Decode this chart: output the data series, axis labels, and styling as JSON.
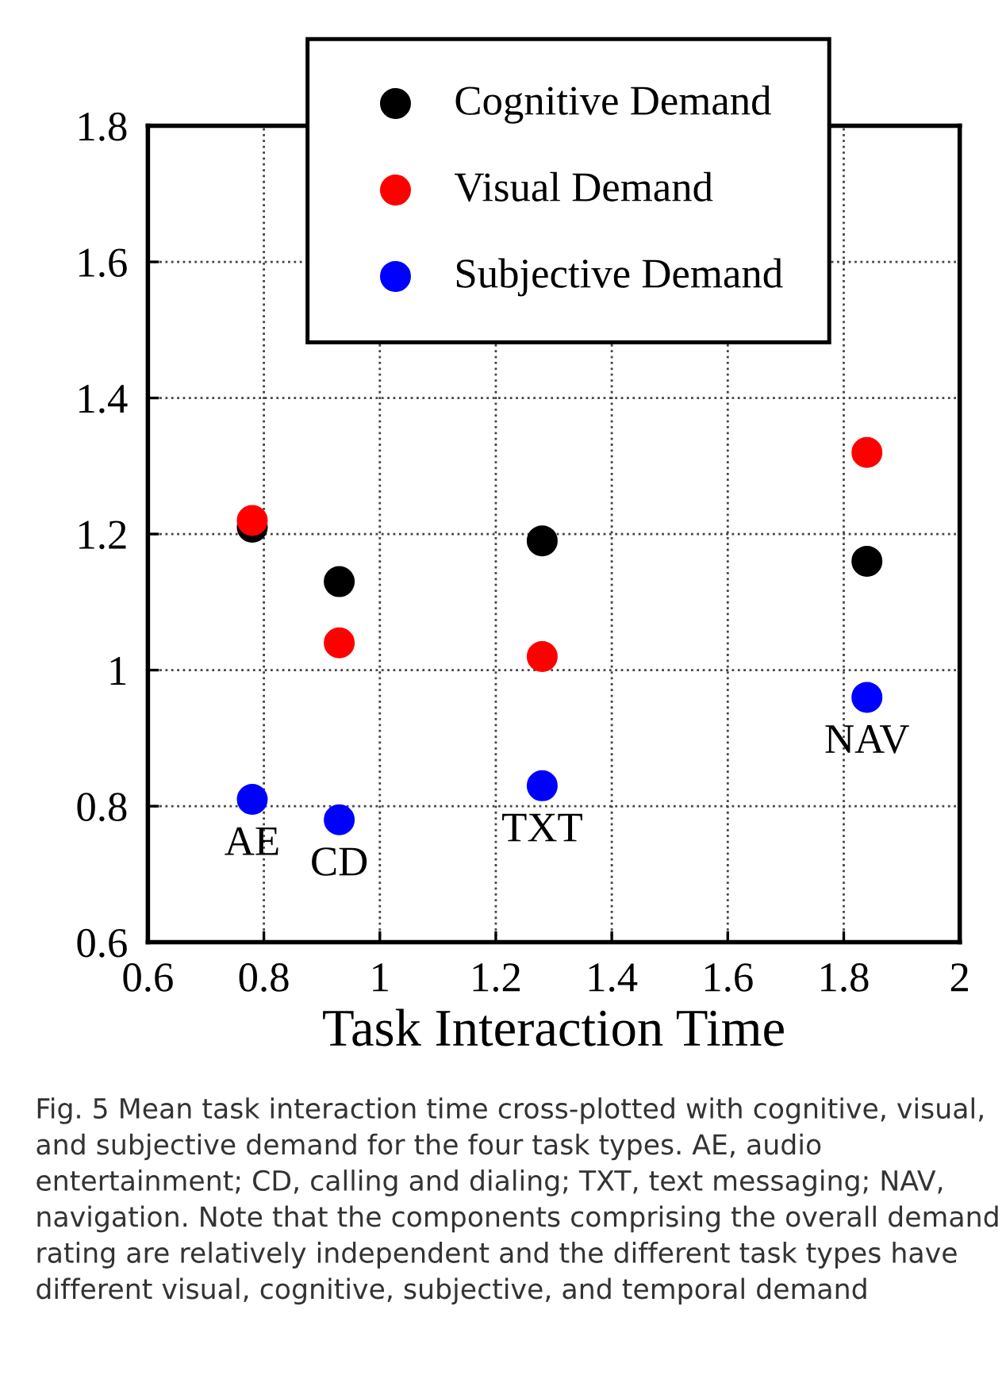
{
  "chart_data": {
    "type": "scatter",
    "xlabel": "Task Interaction Time",
    "x": [
      0.78,
      0.93,
      1.28,
      1.84
    ],
    "series": [
      {
        "name": "Cognitive Demand",
        "color": "#000000",
        "values": [
          1.21,
          1.13,
          1.19,
          1.16
        ]
      },
      {
        "name": "Visual Demand",
        "color": "#ff0000",
        "values": [
          1.22,
          1.04,
          1.02,
          1.32
        ]
      },
      {
        "name": "Subjective Demand",
        "color": "#0000ff",
        "values": [
          0.81,
          0.78,
          0.83,
          0.96
        ]
      }
    ],
    "xlim": [
      0.6,
      2
    ],
    "xticks": [
      0.6,
      0.8,
      1,
      1.2,
      1.4,
      1.6,
      1.8,
      2
    ],
    "ylim": [
      0.6,
      1.8
    ],
    "yticks": [
      0.6,
      0.8,
      1,
      1.2,
      1.4,
      1.6,
      1.8
    ],
    "grid": true,
    "legend": "top",
    "marker": "circle",
    "annotations": [
      {
        "text": "AE",
        "x": 0.78,
        "y": 0.81
      },
      {
        "text": "CD",
        "x": 0.93,
        "y": 0.78
      },
      {
        "text": "TXT",
        "x": 1.28,
        "y": 0.83
      },
      {
        "text": "NAV",
        "x": 1.84,
        "y": 0.96
      },
      "Fig. 5 Mean task interaction time cross-plotted with cognitive, visual, and subjective demand for the four task types. AE, audio entertainment; CD, calling and dialing; TXT, text messaging; NAV, navigation. Note that the components comprising the overall demand rating are relatively independent and the different task types have different visual, cognitive, subjective, and temporal demand"
    ]
  }
}
